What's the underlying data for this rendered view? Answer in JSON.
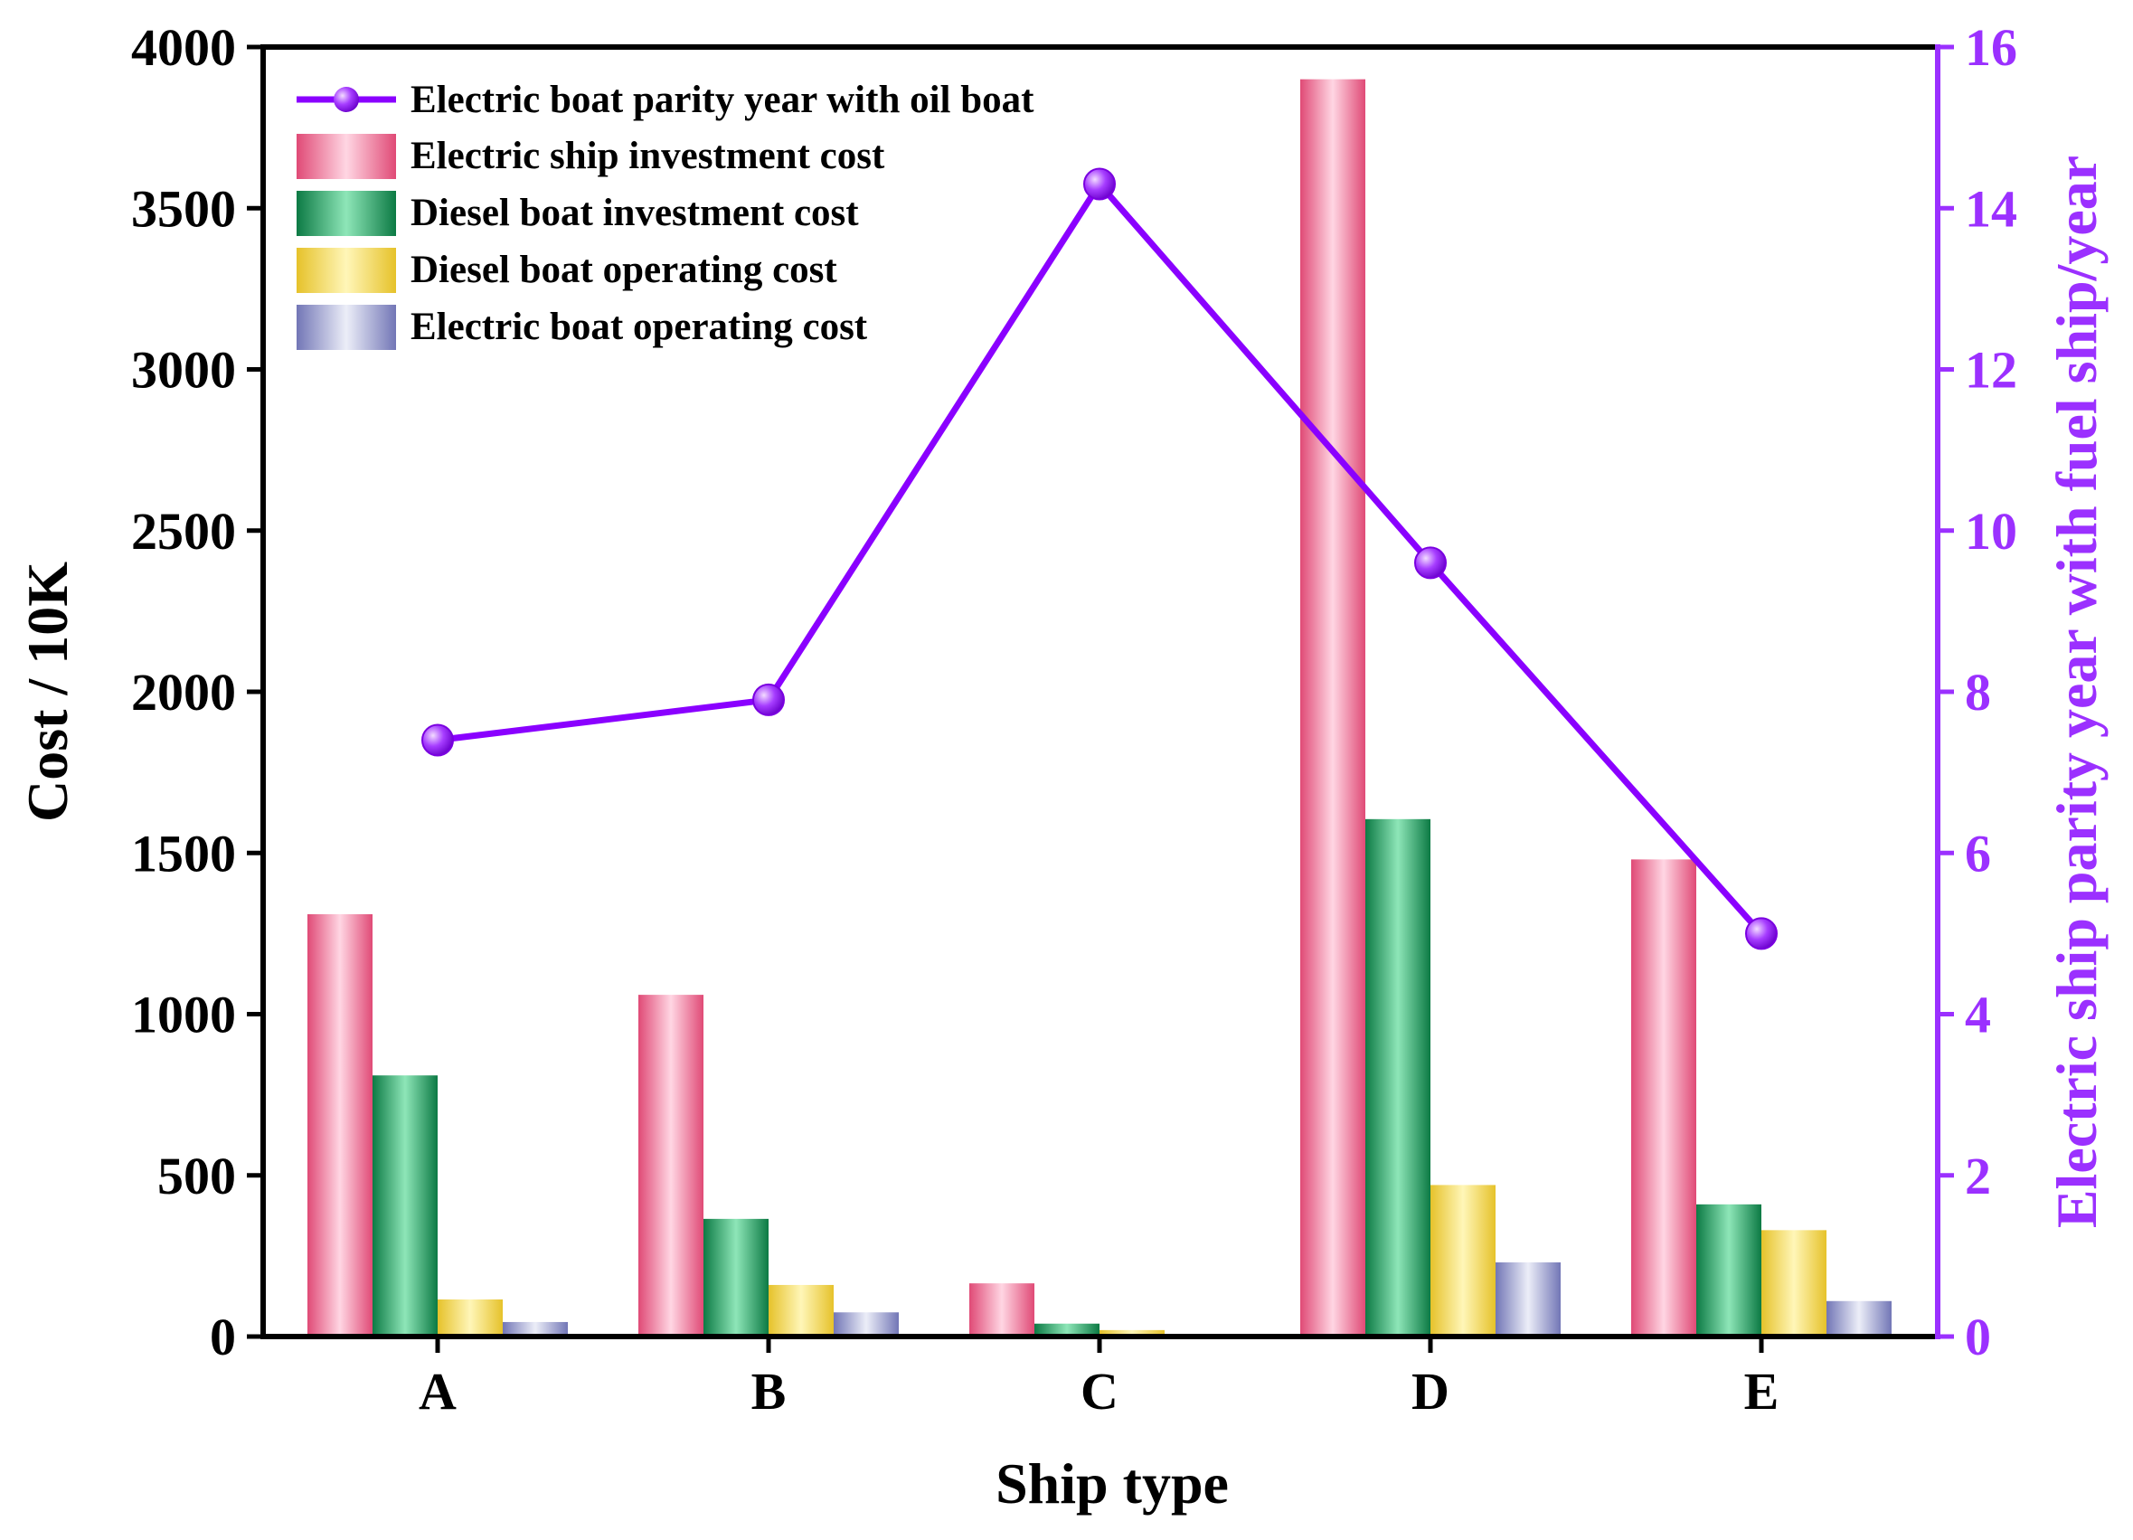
{
  "chart_data": {
    "type": "bar",
    "title": "",
    "xlabel": "Ship type",
    "ylabel": "Cost / 10K",
    "y2label": "Electric ship parity year with fuel ship/year",
    "categories": [
      "A",
      "B",
      "C",
      "D",
      "E"
    ],
    "ylim": [
      0,
      4000
    ],
    "y2lim": [
      0,
      16
    ],
    "yticks": [
      "0",
      "500",
      "1000",
      "1500",
      "2000",
      "2500",
      "3000",
      "3500",
      "4000"
    ],
    "y2ticks": [
      "0",
      "2",
      "4",
      "6",
      "8",
      "10",
      "12",
      "14",
      "16"
    ],
    "grid": false,
    "legend_position": "top-left",
    "series": [
      {
        "name": "Electric ship investment cost",
        "axis": "left",
        "kind": "bar",
        "color": "#e8537f",
        "values": [
          1310,
          1060,
          165,
          3900,
          1480
        ]
      },
      {
        "name": "Diesel boat investment cost",
        "axis": "left",
        "kind": "bar",
        "color": "#169a5a",
        "values": [
          810,
          365,
          40,
          1605,
          410
        ]
      },
      {
        "name": "Diesel boat operating cost",
        "axis": "left",
        "kind": "bar",
        "color": "#e8c83a",
        "values": [
          115,
          160,
          20,
          470,
          330
        ]
      },
      {
        "name": "Electric boat operating cost",
        "axis": "left",
        "kind": "bar",
        "color": "#8a8ec4",
        "values": [
          45,
          75,
          5,
          230,
          110
        ]
      }
    ],
    "line": {
      "name": "Electric boat parity year with oil boat",
      "axis": "right",
      "kind": "line",
      "color": "#8a00ff",
      "values": [
        7.4,
        7.9,
        14.3,
        9.6,
        5.0
      ]
    }
  }
}
